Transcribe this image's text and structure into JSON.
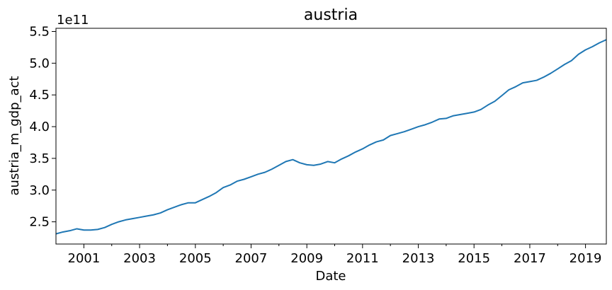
{
  "chart_data": {
    "type": "line",
    "title": "austria",
    "xlabel": "Date",
    "ylabel": "austria_m_gdp_act",
    "y_offset_text": "1e11",
    "xlim": [
      "2000-01-01",
      "2019-10-01"
    ],
    "ylim": [
      2.15,
      5.55
    ],
    "y_scale": "1e11",
    "x_ticks": [
      {
        "label": "2001",
        "date": "2001-01-01",
        "major": true
      },
      {
        "label": "2003",
        "date": "2003-01-01",
        "major": true
      },
      {
        "label": "2005",
        "date": "2005-01-01",
        "major": true
      },
      {
        "label": "2007",
        "date": "2007-01-01",
        "major": true
      },
      {
        "label": "2009",
        "date": "2009-01-01",
        "major": true
      },
      {
        "label": "2011",
        "date": "2011-01-01",
        "major": true
      },
      {
        "label": "2013",
        "date": "2013-01-01",
        "major": true
      },
      {
        "label": "2015",
        "date": "2015-01-01",
        "major": true
      },
      {
        "label": "2017",
        "date": "2017-01-01",
        "major": true
      },
      {
        "label": "2019",
        "date": "2019-01-01",
        "major": true
      }
    ],
    "x_minor_ticks": [
      "2002-01-01",
      "2004-01-01",
      "2006-01-01",
      "2008-01-01",
      "2010-01-01",
      "2012-01-01",
      "2014-01-01",
      "2016-01-01",
      "2018-01-01"
    ],
    "y_ticks": [
      {
        "label": "2.5",
        "value": 2.5
      },
      {
        "label": "3.0",
        "value": 3.0
      },
      {
        "label": "3.5",
        "value": 3.5
      },
      {
        "label": "4.0",
        "value": 4.0
      },
      {
        "label": "4.5",
        "value": 4.5
      },
      {
        "label": "5.0",
        "value": 5.0
      },
      {
        "label": "5.5",
        "value": 5.5
      }
    ],
    "grid": false,
    "line_color": "#1f77b4",
    "series": [
      {
        "x": [
          "2000-01",
          "2000-04",
          "2000-07",
          "2000-10",
          "2001-01",
          "2001-04",
          "2001-07",
          "2001-10",
          "2002-01",
          "2002-04",
          "2002-07",
          "2002-10",
          "2003-01",
          "2003-04",
          "2003-07",
          "2003-10",
          "2004-01",
          "2004-04",
          "2004-07",
          "2004-10",
          "2005-01",
          "2005-04",
          "2005-07",
          "2005-10",
          "2006-01",
          "2006-04",
          "2006-07",
          "2006-10",
          "2007-01",
          "2007-04",
          "2007-07",
          "2007-10",
          "2008-01",
          "2008-04",
          "2008-07",
          "2008-10",
          "2009-01",
          "2009-04",
          "2009-07",
          "2009-10",
          "2010-01",
          "2010-04",
          "2010-07",
          "2010-10",
          "2011-01",
          "2011-04",
          "2011-07",
          "2011-10",
          "2012-01",
          "2012-04",
          "2012-07",
          "2012-10",
          "2013-01",
          "2013-04",
          "2013-07",
          "2013-10",
          "2014-01",
          "2014-04",
          "2014-07",
          "2014-10",
          "2015-01",
          "2015-04",
          "2015-07",
          "2015-10",
          "2016-01",
          "2016-04",
          "2016-07",
          "2016-10",
          "2017-01",
          "2017-04",
          "2017-07",
          "2017-10",
          "2018-01",
          "2018-04",
          "2018-07",
          "2018-10",
          "2019-01",
          "2019-04",
          "2019-07",
          "2019-10"
        ],
        "values": [
          2.31,
          2.34,
          2.36,
          2.39,
          2.37,
          2.37,
          2.38,
          2.41,
          2.46,
          2.5,
          2.53,
          2.55,
          2.57,
          2.59,
          2.61,
          2.64,
          2.69,
          2.73,
          2.77,
          2.8,
          2.8,
          2.85,
          2.9,
          2.96,
          3.04,
          3.08,
          3.14,
          3.17,
          3.21,
          3.25,
          3.28,
          3.33,
          3.39,
          3.45,
          3.48,
          3.43,
          3.4,
          3.39,
          3.41,
          3.45,
          3.43,
          3.49,
          3.54,
          3.6,
          3.65,
          3.71,
          3.76,
          3.79,
          3.86,
          3.89,
          3.92,
          3.96,
          4.0,
          4.03,
          4.07,
          4.12,
          4.13,
          4.17,
          4.19,
          4.21,
          4.23,
          4.27,
          4.34,
          4.4,
          4.49,
          4.58,
          4.63,
          4.69,
          4.71,
          4.73,
          4.78,
          4.84,
          4.91,
          4.98,
          5.04,
          5.14,
          5.21,
          5.26,
          5.32,
          5.37
        ]
      }
    ]
  }
}
